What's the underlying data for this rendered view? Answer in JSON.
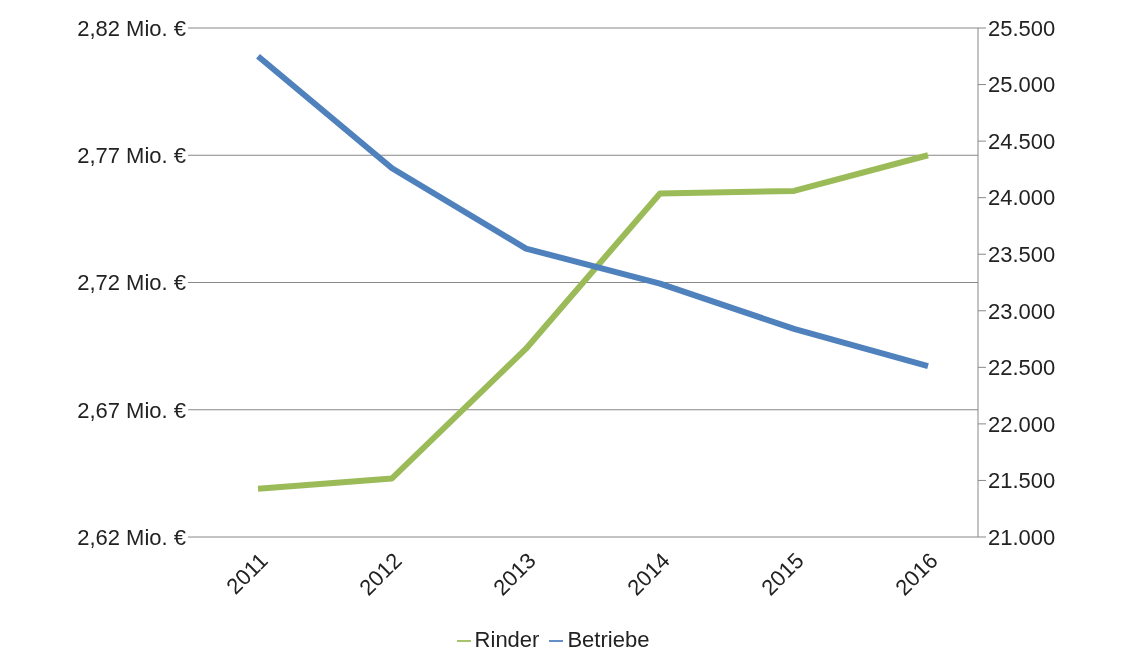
{
  "chart_data": {
    "type": "line",
    "categories": [
      "2011",
      "2012",
      "2013",
      "2014",
      "2015",
      "2016"
    ],
    "series": [
      {
        "name": "Rinder",
        "color": "#9bbb59",
        "values": [
          2.639,
          2.643,
          2.694,
          2.755,
          2.756,
          2.77
        ]
      },
      {
        "name": "Betriebe",
        "color": "#4f81bd",
        "axis": "y2",
        "values": [
          25250,
          24260,
          23550,
          23240,
          22840,
          22510
        ]
      }
    ],
    "ylim": [
      2.62,
      2.82
    ],
    "yticks": [
      {
        "value": 2.62,
        "label": "2,62 Mio. €"
      },
      {
        "value": 2.67,
        "label": "2,67 Mio. €"
      },
      {
        "value": 2.72,
        "label": "2,72 Mio. €"
      },
      {
        "value": 2.77,
        "label": "2,77 Mio. €"
      },
      {
        "value": 2.82,
        "label": "2,82 Mio. €"
      }
    ],
    "y2lim": [
      21000,
      25500
    ],
    "y2ticks": [
      {
        "value": 21000,
        "label": "21.000"
      },
      {
        "value": 21500,
        "label": "21.500"
      },
      {
        "value": 22000,
        "label": "22.000"
      },
      {
        "value": 22500,
        "label": "22.500"
      },
      {
        "value": 23000,
        "label": "23.000"
      },
      {
        "value": 23500,
        "label": "23.500"
      },
      {
        "value": 24000,
        "label": "24.000"
      },
      {
        "value": 24500,
        "label": "24.500"
      },
      {
        "value": 25000,
        "label": "25.000"
      },
      {
        "value": 25500,
        "label": "25.500"
      }
    ],
    "grid": "y",
    "legend": "bottom",
    "marker": "none",
    "line_style": "solid"
  }
}
